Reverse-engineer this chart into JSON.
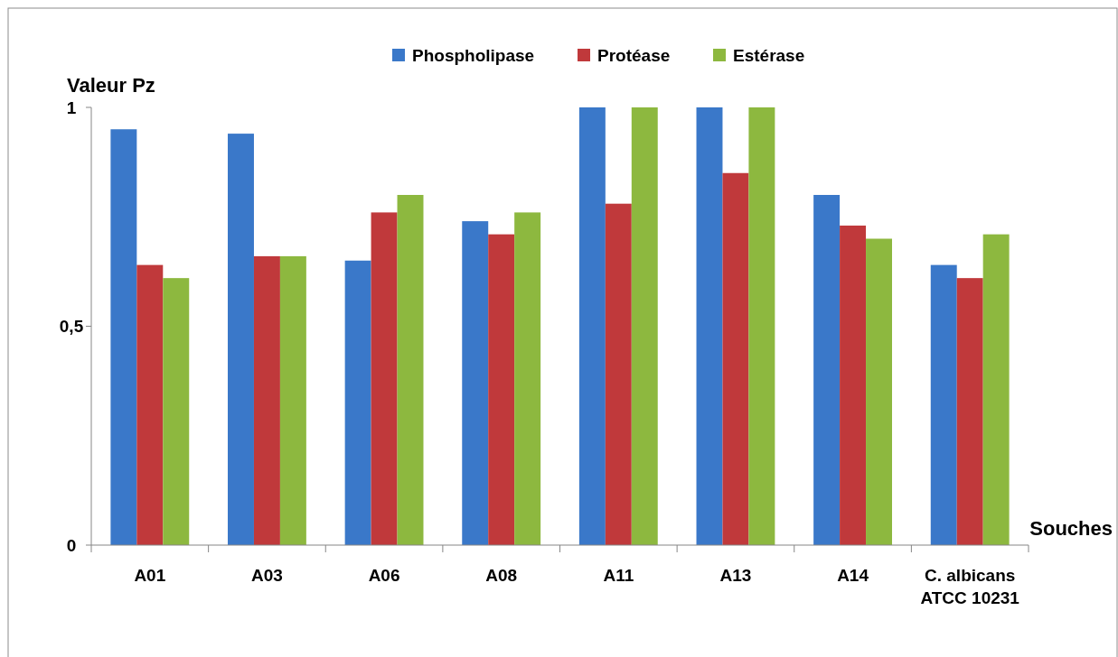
{
  "chart_data": {
    "type": "bar",
    "xlabel": "Souches",
    "ylabel": "Valeur Pz",
    "categories": [
      "A01",
      "A03",
      "A06",
      "A08",
      "A11",
      "A13",
      "A14",
      "C. albicans ATCC 10231"
    ],
    "series": [
      {
        "name": "Phospholipase",
        "color": "#3a78c9",
        "values": [
          0.95,
          0.94,
          0.65,
          0.74,
          1,
          1,
          0.8,
          0.64
        ]
      },
      {
        "name": "Protéase",
        "color": "#c0393b",
        "values": [
          0.64,
          0.66,
          0.76,
          0.71,
          0.78,
          0.85,
          0.73,
          0.61
        ]
      },
      {
        "name": "Estérase",
        "color": "#8db83f",
        "values": [
          0.61,
          0.66,
          0.8,
          0.76,
          1,
          1,
          0.7,
          0.71
        ]
      }
    ],
    "ylim": [
      0,
      1
    ],
    "yticks": [
      0,
      {
        "value": 0.5,
        "label": "0,5"
      },
      1
    ],
    "legend": "top"
  }
}
